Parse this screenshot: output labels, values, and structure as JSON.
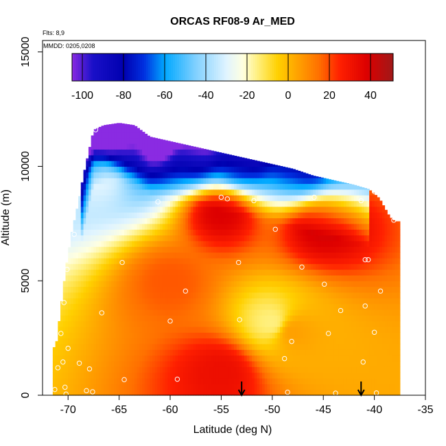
{
  "chart_data": {
    "type": "heatmap",
    "title": "ORCAS RF08-9 Ar_MED",
    "notes": {
      "flights": "Flts: 8,9",
      "dates": "MMDD: 0205,0208"
    },
    "xlabel": "Latitude (deg N)",
    "ylabel": "Altitude (m)",
    "xlim": [
      -72.5,
      -35
    ],
    "ylim": [
      0,
      15500
    ],
    "x_ticks": [
      -70,
      -65,
      -60,
      -55,
      -50,
      -45,
      -40,
      -35
    ],
    "x_tick_labels": [
      "-70",
      "-65",
      "-60",
      "-55",
      "-50",
      "-45",
      "-40",
      "-35"
    ],
    "y_ticks": [
      0,
      5000,
      10000,
      15000
    ],
    "y_tick_labels": [
      "0",
      "5000",
      "10000",
      "15000"
    ],
    "colorbar": {
      "range": [
        -105,
        51
      ],
      "ticks": [
        -100,
        -80,
        -60,
        -40,
        -20,
        0,
        20,
        40
      ],
      "tick_labels": [
        "-100",
        "-80",
        "-60",
        "-40",
        "-20",
        "0",
        "20",
        "40"
      ],
      "colors": [
        [
          -105,
          "#8a2be2"
        ],
        [
          -95,
          "#1a10c8"
        ],
        [
          -80,
          "#0000b0"
        ],
        [
          -70,
          "#0030e0"
        ],
        [
          -60,
          "#00a8ff"
        ],
        [
          -45,
          "#80d0ff"
        ],
        [
          -30,
          "#e0f4ff"
        ],
        [
          -22,
          "#ffffe0"
        ],
        [
          -15,
          "#fff080"
        ],
        [
          -5,
          "#ffd000"
        ],
        [
          5,
          "#ffa000"
        ],
        [
          15,
          "#ff7000"
        ],
        [
          25,
          "#ff2000"
        ],
        [
          38,
          "#dd0000"
        ],
        [
          51,
          "#a01818"
        ]
      ]
    },
    "columns": [
      {
        "lat": -71.2,
        "bottom": 0,
        "top": 2100
      },
      {
        "lat": -70.8,
        "bottom": 0,
        "top": 3500
      },
      {
        "lat": -70.2,
        "bottom": 0,
        "top": 5600
      },
      {
        "lat": -69.6,
        "bottom": 0,
        "top": 7200
      },
      {
        "lat": -69.0,
        "bottom": 0,
        "top": 8400
      },
      {
        "lat": -68.5,
        "bottom": 0,
        "top": 9600
      },
      {
        "lat": -68.0,
        "bottom": 0,
        "top": 10600
      },
      {
        "lat": -67.5,
        "bottom": 0,
        "top": 11600
      },
      {
        "lat": -66.5,
        "bottom": 0,
        "top": 11800
      },
      {
        "lat": -65.0,
        "bottom": 0,
        "top": 11900
      },
      {
        "lat": -63.5,
        "bottom": 0,
        "top": 11800
      },
      {
        "lat": -62.0,
        "bottom": 0,
        "top": 11300
      },
      {
        "lat": -60.0,
        "bottom": 0,
        "top": 11100
      },
      {
        "lat": -58.0,
        "bottom": 0,
        "top": 10900
      },
      {
        "lat": -56.0,
        "bottom": 0,
        "top": 10700
      },
      {
        "lat": -54.0,
        "bottom": 0,
        "top": 10500
      },
      {
        "lat": -52.0,
        "bottom": 0,
        "top": 10300
      },
      {
        "lat": -50.0,
        "bottom": 0,
        "top": 10100
      },
      {
        "lat": -48.0,
        "bottom": 0,
        "top": 9900
      },
      {
        "lat": -46.0,
        "bottom": 0,
        "top": 9600
      },
      {
        "lat": -44.0,
        "bottom": 0,
        "top": 9400
      },
      {
        "lat": -42.0,
        "bottom": 0,
        "top": 9200
      },
      {
        "lat": -40.5,
        "bottom": 0,
        "top": 9000
      },
      {
        "lat": -39.5,
        "bottom": 0,
        "top": 8600
      },
      {
        "lat": -38.5,
        "bottom": 0,
        "top": 7800
      },
      {
        "lat": -38.0,
        "bottom": 0,
        "top": 7600
      }
    ],
    "features": [
      {
        "lat": -62.0,
        "alt": 11200,
        "value": -85
      },
      {
        "lat": -66.0,
        "alt": 11500,
        "value": -80
      },
      {
        "lat": -63.0,
        "alt": 10800,
        "value": -65
      },
      {
        "lat": -58.0,
        "alt": 10500,
        "value": -45
      },
      {
        "lat": -53.0,
        "alt": 10200,
        "value": -30
      },
      {
        "lat": -48.0,
        "alt": 9800,
        "value": -18
      },
      {
        "lat": -67.0,
        "alt": 9500,
        "value": -30
      },
      {
        "lat": -55.0,
        "alt": 8000,
        "value": 38
      },
      {
        "lat": -45.0,
        "alt": 7500,
        "value": 40
      },
      {
        "lat": -60.0,
        "alt": 5000,
        "value": 18
      },
      {
        "lat": -50.0,
        "alt": 3200,
        "value": -15
      },
      {
        "lat": -48.0,
        "alt": 2800,
        "value": 5
      },
      {
        "lat": -55.0,
        "alt": 1000,
        "value": 32
      }
    ],
    "observations": [
      {
        "lat": -67.3,
        "alt": 11600
      },
      {
        "lat": -61.2,
        "alt": 8450
      },
      {
        "lat": -55.0,
        "alt": 8650
      },
      {
        "lat": -54.4,
        "alt": 8580
      },
      {
        "lat": -51.8,
        "alt": 8500
      },
      {
        "lat": -45.9,
        "alt": 8650
      },
      {
        "lat": -41.3,
        "alt": 8500
      },
      {
        "lat": -40.0,
        "alt": 8900
      },
      {
        "lat": -38.1,
        "alt": 7650
      },
      {
        "lat": -69.4,
        "alt": 7030
      },
      {
        "lat": -49.7,
        "alt": 7250
      },
      {
        "lat": -64.7,
        "alt": 5800
      },
      {
        "lat": -53.3,
        "alt": 5800
      },
      {
        "lat": -47.1,
        "alt": 5600
      },
      {
        "lat": -40.9,
        "alt": 5920
      },
      {
        "lat": -40.6,
        "alt": 5920
      },
      {
        "lat": -70.1,
        "alt": 5500
      },
      {
        "lat": -44.9,
        "alt": 4850
      },
      {
        "lat": -58.5,
        "alt": 4550
      },
      {
        "lat": -39.4,
        "alt": 4550
      },
      {
        "lat": -70.4,
        "alt": 4050
      },
      {
        "lat": -66.7,
        "alt": 3600
      },
      {
        "lat": -43.3,
        "alt": 3700
      },
      {
        "lat": -40.9,
        "alt": 3900
      },
      {
        "lat": -60.0,
        "alt": 3240
      },
      {
        "lat": -53.2,
        "alt": 3300
      },
      {
        "lat": -70.7,
        "alt": 2700
      },
      {
        "lat": -44.5,
        "alt": 2700
      },
      {
        "lat": -40.0,
        "alt": 2750
      },
      {
        "lat": -48.1,
        "alt": 2350
      },
      {
        "lat": -70.0,
        "alt": 2050
      },
      {
        "lat": -48.8,
        "alt": 1600
      },
      {
        "lat": -41.1,
        "alt": 1450
      },
      {
        "lat": -70.5,
        "alt": 1450
      },
      {
        "lat": -68.9,
        "alt": 1400
      },
      {
        "lat": -71.0,
        "alt": 1200
      },
      {
        "lat": -67.9,
        "alt": 1150
      },
      {
        "lat": -64.5,
        "alt": 680
      },
      {
        "lat": -59.3,
        "alt": 700
      },
      {
        "lat": -70.3,
        "alt": 350
      },
      {
        "lat": -71.3,
        "alt": 250
      },
      {
        "lat": -68.2,
        "alt": 200
      },
      {
        "lat": -67.6,
        "alt": 150
      },
      {
        "lat": -70.2,
        "alt": 50
      },
      {
        "lat": -48.5,
        "alt": 130
      },
      {
        "lat": -43.8,
        "alt": 90
      },
      {
        "lat": -39.8,
        "alt": 100
      }
    ],
    "markers": [
      {
        "lat": -53.0,
        "symbol": "down-arrow"
      },
      {
        "lat": -41.3,
        "symbol": "down-arrow"
      }
    ]
  }
}
